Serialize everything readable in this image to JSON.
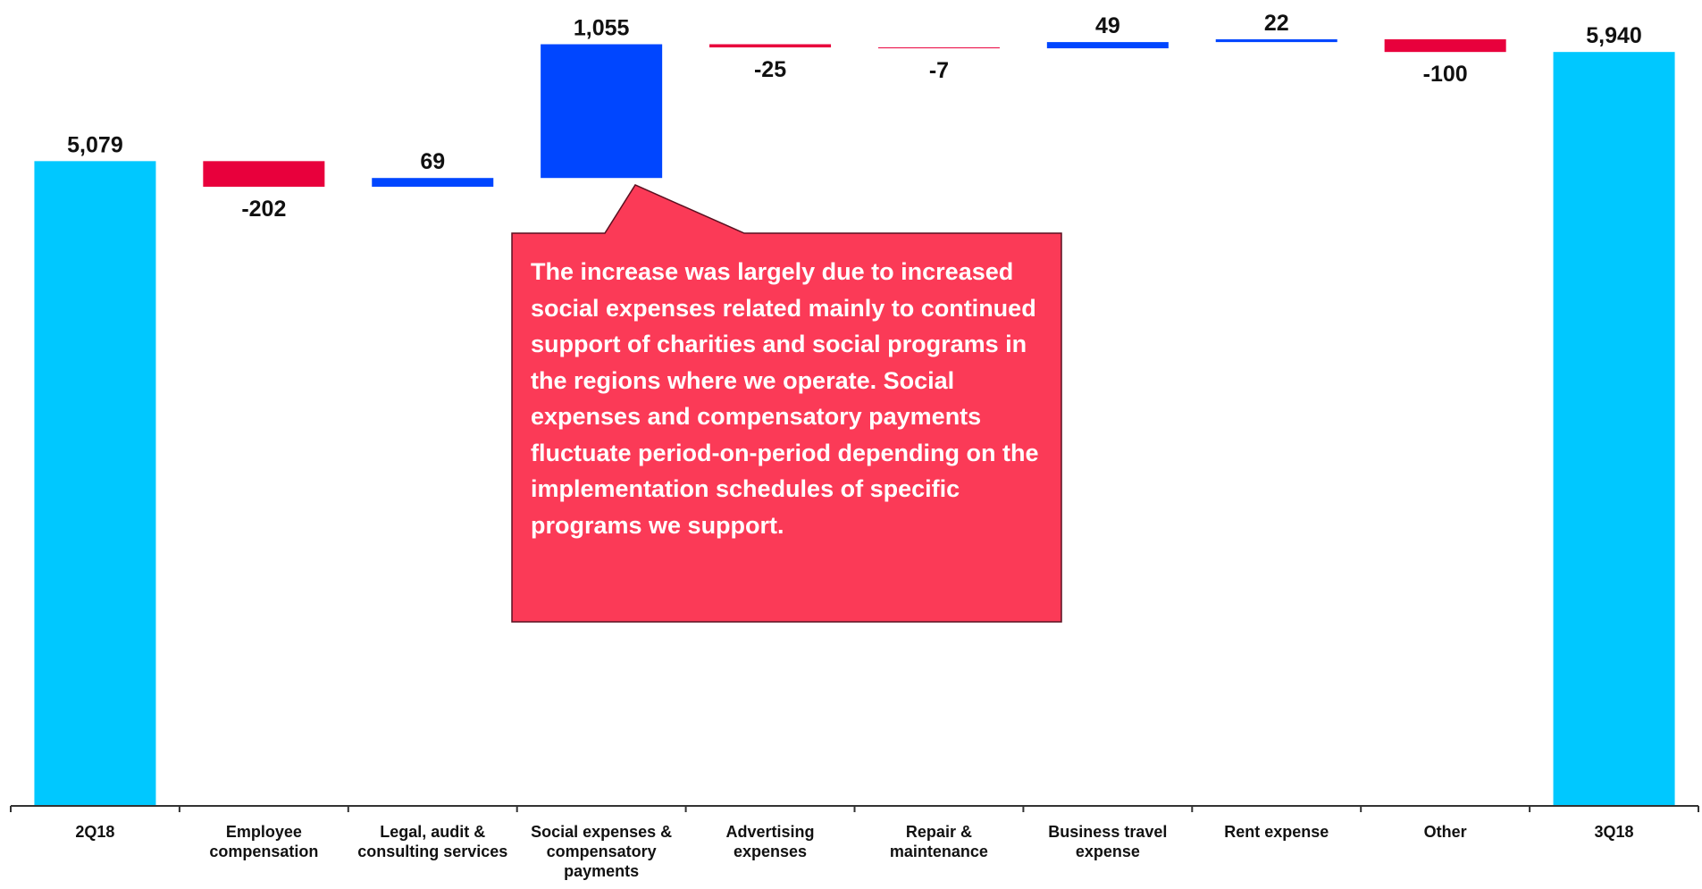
{
  "chart_data": {
    "type": "waterfall",
    "categories": [
      "2Q18",
      "Employee compensation",
      "Legal, audit & consulting services",
      "Social expenses & compensatory payments",
      "Advertising expenses",
      "Repair & maintenance",
      "Business travel expense",
      "Rent expense",
      "Other",
      "3Q18"
    ],
    "values": [
      5079,
      -202,
      69,
      1055,
      -25,
      -7,
      49,
      22,
      -100,
      5940
    ],
    "value_labels": [
      "5,079",
      "-202",
      "69",
      "1,055",
      "-25",
      "-7",
      "49",
      "22",
      "-100",
      "5,940"
    ],
    "total_color": "#00c8ff",
    "increase_color": "#0046ff",
    "decrease_color": "#e8003c",
    "ylim": [
      0,
      6350
    ],
    "annotation": "The increase was largely due to increased social expenses related mainly to continued support of charities and social programs in the regions where we operate. Social expenses and compensatory payments fluctuate period-on-period depending on the implementation schedules of specific programs we support."
  }
}
